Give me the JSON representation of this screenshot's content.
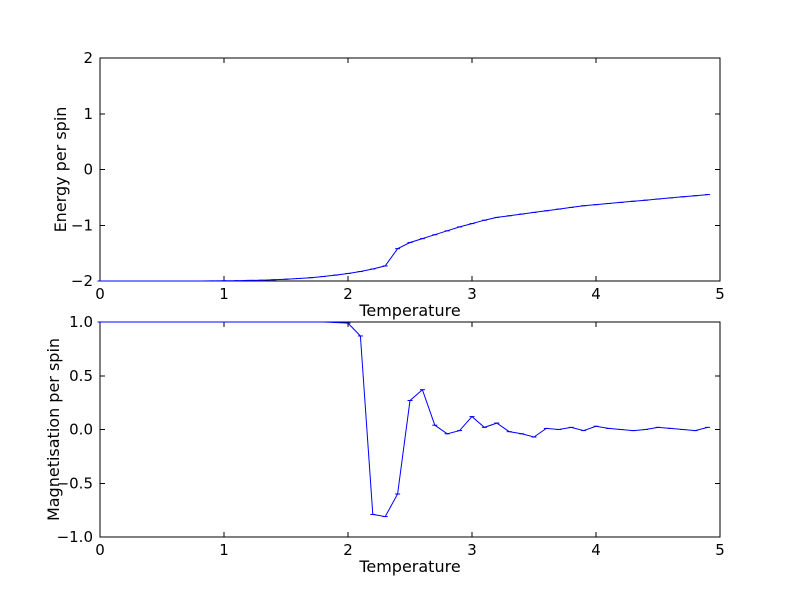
{
  "figure": {
    "background": "#ffffff"
  },
  "colors": {
    "line": "#0000ff",
    "axis": "#000000",
    "text": "#000000",
    "background": "#ffffff"
  },
  "chart_data": [
    {
      "type": "line",
      "title": "",
      "xlabel": "Temperature",
      "ylabel": "Energy per spin",
      "xlim": [
        0,
        5
      ],
      "ylim": [
        -2,
        2
      ],
      "grid": false,
      "legend": "none",
      "xticks": [
        0,
        1,
        2,
        3,
        4,
        5
      ],
      "xtick_labels": [
        "0",
        "1",
        "2",
        "3",
        "4",
        "5"
      ],
      "yticks": [
        -2,
        -1,
        0,
        1,
        2
      ],
      "ytick_labels": [
        "−2",
        "−1",
        "0",
        "1",
        "2"
      ],
      "x": [
        0.0,
        0.1,
        0.2,
        0.3,
        0.4,
        0.5,
        0.6,
        0.7,
        0.8,
        0.9,
        1.0,
        1.1,
        1.2,
        1.3,
        1.4,
        1.5,
        1.6,
        1.7,
        1.8,
        1.9,
        2.0,
        2.1,
        2.2,
        2.3,
        2.4,
        2.5,
        2.6,
        2.7,
        2.8,
        2.9,
        3.0,
        3.1,
        3.2,
        3.3,
        3.4,
        3.5,
        3.6,
        3.7,
        3.8,
        3.9,
        4.0,
        4.1,
        4.2,
        4.3,
        4.4,
        4.5,
        4.6,
        4.7,
        4.8,
        4.9
      ],
      "y": [
        -2.0,
        -2.0,
        -2.0,
        -2.0,
        -2.0,
        -2.0,
        -2.0,
        -2.0,
        -2.0,
        -1.999,
        -1.997,
        -1.994,
        -1.99,
        -1.985,
        -1.978,
        -1.968,
        -1.955,
        -1.94,
        -1.92,
        -1.895,
        -1.865,
        -1.83,
        -1.785,
        -1.73,
        -1.42,
        -1.31,
        -1.24,
        -1.17,
        -1.1,
        -1.03,
        -0.97,
        -0.91,
        -0.86,
        -0.83,
        -0.8,
        -0.77,
        -0.74,
        -0.71,
        -0.68,
        -0.65,
        -0.63,
        -0.61,
        -0.59,
        -0.57,
        -0.55,
        -0.53,
        -0.51,
        -0.49,
        -0.47,
        -0.45
      ]
    },
    {
      "type": "line",
      "title": "",
      "xlabel": "Temperature",
      "ylabel": "Magnetisation per spin",
      "xlim": [
        0,
        5
      ],
      "ylim": [
        -1,
        1
      ],
      "grid": false,
      "legend": "none",
      "xticks": [
        0,
        1,
        2,
        3,
        4,
        5
      ],
      "xtick_labels": [
        "0",
        "1",
        "2",
        "3",
        "4",
        "5"
      ],
      "yticks": [
        -1.0,
        -0.5,
        0.0,
        0.5,
        1.0
      ],
      "ytick_labels": [
        "−1.0",
        "−0.5",
        "0.0",
        "0.5",
        "1.0"
      ],
      "x": [
        0.0,
        0.1,
        0.2,
        0.3,
        0.4,
        0.5,
        0.6,
        0.7,
        0.8,
        0.9,
        1.0,
        1.1,
        1.2,
        1.3,
        1.4,
        1.5,
        1.6,
        1.7,
        1.8,
        1.9,
        2.0,
        2.1,
        2.2,
        2.3,
        2.4,
        2.5,
        2.6,
        2.7,
        2.8,
        2.9,
        3.0,
        3.1,
        3.2,
        3.3,
        3.4,
        3.5,
        3.6,
        3.7,
        3.8,
        3.9,
        4.0,
        4.1,
        4.2,
        4.3,
        4.4,
        4.5,
        4.6,
        4.7,
        4.8,
        4.9
      ],
      "y": [
        1.0,
        1.0,
        1.0,
        1.0,
        1.0,
        1.0,
        1.0,
        1.0,
        1.0,
        1.0,
        1.0,
        1.0,
        1.0,
        1.0,
        1.0,
        1.0,
        1.0,
        1.0,
        1.0,
        0.995,
        0.99,
        0.87,
        -0.79,
        -0.81,
        -0.6,
        0.27,
        0.37,
        0.04,
        -0.04,
        -0.01,
        0.12,
        0.02,
        0.06,
        -0.02,
        -0.04,
        -0.07,
        0.01,
        0.0,
        0.02,
        -0.01,
        0.03,
        0.01,
        0.0,
        -0.01,
        0.0,
        0.02,
        0.01,
        0.0,
        -0.01,
        0.02
      ]
    }
  ]
}
